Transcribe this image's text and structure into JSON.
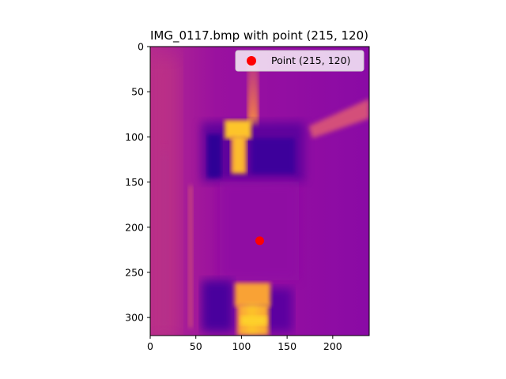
{
  "chart_data": {
    "type": "scatter",
    "title": "IMG_0117.bmp with point (215, 120)",
    "xlabel": "",
    "ylabel": "",
    "xlim": [
      0,
      240
    ],
    "ylim": [
      320,
      0
    ],
    "x_ticks": [
      0,
      50,
      100,
      150,
      200
    ],
    "y_ticks": [
      0,
      50,
      100,
      150,
      200,
      250,
      300
    ],
    "grid": false,
    "legend_position": "upper-right",
    "background_image": "thermal-image-plasma-colormap",
    "series": [
      {
        "name": "Point (215, 120)",
        "x": [
          120
        ],
        "y": [
          215
        ],
        "color": "#ff0000"
      }
    ]
  },
  "colors": {
    "plasma_dark": "#2f0596",
    "plasma_purple": "#8a09a5",
    "plasma_magenta": "#c43f7a",
    "plasma_orange": "#f89540",
    "plasma_yellow": "#fdca26",
    "marker": "#ff0000"
  }
}
